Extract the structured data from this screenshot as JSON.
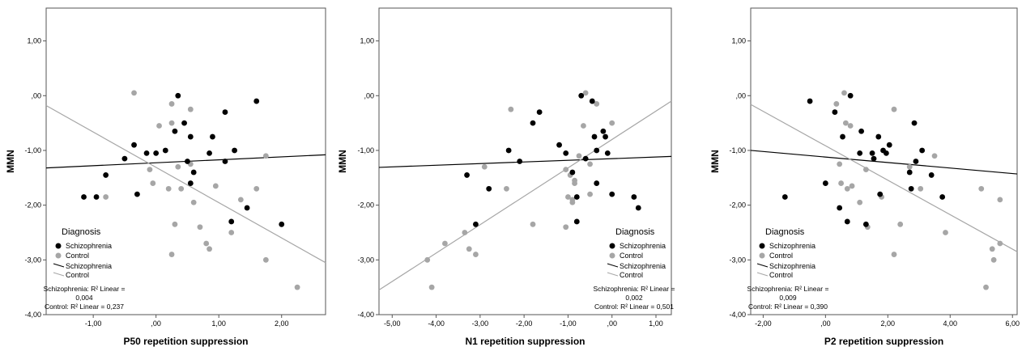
{
  "colors": {
    "schizophrenia": "#000000",
    "control": "#a6a6a6",
    "frame": "#555555"
  },
  "legend": {
    "title": "Diagnosis",
    "point_labels": [
      "Schizophrenia",
      "Control"
    ],
    "line_labels": [
      "Schizophrenia",
      "Control"
    ]
  },
  "chart_data": [
    {
      "type": "scatter",
      "xlabel": "P50 repetition suppression",
      "ylabel": "MMN",
      "xlim": [
        -1.75,
        2.7
      ],
      "ylim": [
        -4.0,
        1.6
      ],
      "xticks": [
        -1.0,
        0.0,
        1.0,
        2.0
      ],
      "xtick_labels": [
        "-1,00",
        ",00",
        "1,00",
        "2,00"
      ],
      "yticks": [
        -4.0,
        -3.0,
        -2.0,
        -1.0,
        0.0,
        1.0
      ],
      "ytick_labels": [
        "-4,00",
        "-3,00",
        "-2,00",
        "-1,00",
        ",00",
        "1,00"
      ],
      "series": [
        {
          "name": "Schizophrenia",
          "points": [
            [
              -1.15,
              -1.85
            ],
            [
              -0.95,
              -1.85
            ],
            [
              -0.8,
              -1.45
            ],
            [
              -0.5,
              -1.15
            ],
            [
              -0.35,
              -0.9
            ],
            [
              -0.3,
              -1.8
            ],
            [
              -0.15,
              -1.05
            ],
            [
              0.0,
              -1.05
            ],
            [
              0.15,
              -1.0
            ],
            [
              0.3,
              -0.65
            ],
            [
              0.35,
              0.0
            ],
            [
              0.45,
              -0.5
            ],
            [
              0.55,
              -0.75
            ],
            [
              0.5,
              -1.2
            ],
            [
              0.55,
              -1.6
            ],
            [
              0.6,
              -1.4
            ],
            [
              0.85,
              -1.05
            ],
            [
              0.9,
              -0.75
            ],
            [
              1.1,
              -0.3
            ],
            [
              1.1,
              -1.2
            ],
            [
              1.2,
              -2.3
            ],
            [
              1.25,
              -1.0
            ],
            [
              1.45,
              -2.05
            ],
            [
              1.6,
              -0.1
            ],
            [
              2.0,
              -2.35
            ]
          ]
        },
        {
          "name": "Control",
          "points": [
            [
              -0.8,
              -1.85
            ],
            [
              -0.35,
              0.05
            ],
            [
              -0.1,
              -1.35
            ],
            [
              -0.05,
              -1.6
            ],
            [
              0.05,
              -0.55
            ],
            [
              0.2,
              -1.7
            ],
            [
              0.25,
              -0.15
            ],
            [
              0.25,
              -0.5
            ],
            [
              0.25,
              -2.9
            ],
            [
              0.3,
              -2.35
            ],
            [
              0.35,
              -1.3
            ],
            [
              0.4,
              -1.7
            ],
            [
              0.55,
              -0.25
            ],
            [
              0.55,
              -1.25
            ],
            [
              0.6,
              -1.95
            ],
            [
              0.7,
              -2.4
            ],
            [
              0.8,
              -2.7
            ],
            [
              0.85,
              -2.8
            ],
            [
              0.95,
              -1.65
            ],
            [
              1.2,
              -2.5
            ],
            [
              1.35,
              -1.9
            ],
            [
              1.6,
              -1.7
            ],
            [
              1.75,
              -1.1
            ],
            [
              1.75,
              -3.0
            ],
            [
              2.25,
              -3.5
            ]
          ]
        }
      ],
      "fit_lines": [
        {
          "name": "Schizophrenia",
          "x": [
            -1.75,
            2.7
          ],
          "y": [
            -1.32,
            -1.08
          ]
        },
        {
          "name": "Control",
          "x": [
            -1.75,
            2.7
          ],
          "y": [
            -0.18,
            -3.05
          ]
        }
      ],
      "r2_text": {
        "schizophrenia_line1": "Schizophrenia: R² Linear =",
        "schizophrenia_line2": "0,004",
        "control": "Control: R² Linear = 0,237"
      }
    },
    {
      "type": "scatter",
      "xlabel": "N1 repetition suppression",
      "ylabel": "MMN",
      "xlim": [
        -5.3,
        1.35
      ],
      "ylim": [
        -4.0,
        1.6
      ],
      "xticks": [
        -5.0,
        -4.0,
        -3.0,
        -2.0,
        -1.0,
        0.0,
        1.0
      ],
      "xtick_labels": [
        "-5,00",
        "-4,00",
        "-3,00",
        "-2,00",
        "-1,00",
        ",00",
        "1,00"
      ],
      "yticks": [
        -4.0,
        -3.0,
        -2.0,
        -1.0,
        0.0,
        1.0
      ],
      "ytick_labels": [
        "-4,00",
        "-3,00",
        "-2,00",
        "-1,00",
        ",00",
        "1,00"
      ],
      "series": [
        {
          "name": "Schizophrenia",
          "points": [
            [
              -3.3,
              -1.45
            ],
            [
              -3.1,
              -2.35
            ],
            [
              -2.8,
              -1.7
            ],
            [
              -2.35,
              -1.0
            ],
            [
              -2.1,
              -1.2
            ],
            [
              -1.8,
              -0.5
            ],
            [
              -1.65,
              -0.3
            ],
            [
              -1.2,
              -0.9
            ],
            [
              -1.05,
              -1.05
            ],
            [
              -0.9,
              -1.4
            ],
            [
              -0.8,
              -1.85
            ],
            [
              -0.8,
              -2.3
            ],
            [
              -0.7,
              0.0
            ],
            [
              -0.6,
              -1.15
            ],
            [
              -0.45,
              -0.1
            ],
            [
              -0.4,
              -0.75
            ],
            [
              -0.35,
              -1.0
            ],
            [
              -0.35,
              -1.6
            ],
            [
              -0.2,
              -0.65
            ],
            [
              -0.15,
              -0.75
            ],
            [
              -0.1,
              -1.05
            ],
            [
              0.0,
              -1.8
            ],
            [
              0.5,
              -1.85
            ],
            [
              0.6,
              -2.05
            ]
          ]
        },
        {
          "name": "Control",
          "points": [
            [
              -4.2,
              -3.0
            ],
            [
              -4.1,
              -3.5
            ],
            [
              -3.8,
              -2.7
            ],
            [
              -3.35,
              -2.5
            ],
            [
              -3.25,
              -2.8
            ],
            [
              -3.1,
              -2.9
            ],
            [
              -2.9,
              -1.3
            ],
            [
              -2.4,
              -1.7
            ],
            [
              -2.3,
              -0.25
            ],
            [
              -1.8,
              -2.35
            ],
            [
              -1.05,
              -1.35
            ],
            [
              -1.0,
              -1.85
            ],
            [
              -0.95,
              -1.45
            ],
            [
              -0.9,
              -1.9
            ],
            [
              -0.9,
              -1.95
            ],
            [
              -0.85,
              -1.6
            ],
            [
              -0.85,
              -1.55
            ],
            [
              -0.75,
              -1.1
            ],
            [
              -0.65,
              -0.55
            ],
            [
              -0.6,
              0.05
            ],
            [
              -0.5,
              -1.25
            ],
            [
              -0.5,
              -1.8
            ],
            [
              -0.35,
              -0.15
            ],
            [
              -1.05,
              -2.4
            ],
            [
              0.0,
              -0.5
            ]
          ]
        }
      ],
      "fit_lines": [
        {
          "name": "Schizophrenia",
          "x": [
            -5.3,
            1.35
          ],
          "y": [
            -1.31,
            -1.11
          ]
        },
        {
          "name": "Control",
          "x": [
            -5.3,
            1.35
          ],
          "y": [
            -3.55,
            -0.1
          ]
        }
      ],
      "r2_text": {
        "schizophrenia_line1": "Schizophrenia: R² Linear =",
        "schizophrenia_line2": "0,002",
        "control": "Control: R² Linear = 0,501"
      }
    },
    {
      "type": "scatter",
      "xlabel": "P2 repetition suppression",
      "ylabel": "MMN",
      "xlim": [
        -2.4,
        6.15
      ],
      "ylim": [
        -4.0,
        1.6
      ],
      "xticks": [
        -2.0,
        0.0,
        2.0,
        4.0,
        6.0
      ],
      "xtick_labels": [
        "-2,00",
        ",00",
        "2,00",
        "4,00",
        "6,00"
      ],
      "yticks": [
        -4.0,
        -3.0,
        -2.0,
        -1.0,
        0.0,
        1.0
      ],
      "ytick_labels": [
        "-4,00",
        "-3,00",
        "-2,00",
        "-1,00",
        ",00",
        "1,00"
      ],
      "series": [
        {
          "name": "Schizophrenia",
          "points": [
            [
              -1.3,
              -1.85
            ],
            [
              -0.5,
              -0.1
            ],
            [
              0.0,
              -1.6
            ],
            [
              0.3,
              -0.3
            ],
            [
              0.45,
              -2.05
            ],
            [
              0.55,
              -0.75
            ],
            [
              0.7,
              -2.3
            ],
            [
              0.8,
              0.0
            ],
            [
              1.1,
              -1.05
            ],
            [
              1.15,
              -0.65
            ],
            [
              1.3,
              -2.35
            ],
            [
              1.5,
              -1.05
            ],
            [
              1.55,
              -1.15
            ],
            [
              1.7,
              -0.75
            ],
            [
              1.75,
              -1.8
            ],
            [
              1.85,
              -1.0
            ],
            [
              1.95,
              -1.05
            ],
            [
              2.05,
              -0.9
            ],
            [
              2.7,
              -1.4
            ],
            [
              2.75,
              -1.7
            ],
            [
              2.85,
              -0.5
            ],
            [
              2.9,
              -1.2
            ],
            [
              3.1,
              -1.0
            ],
            [
              3.4,
              -1.45
            ],
            [
              3.75,
              -1.85
            ]
          ]
        },
        {
          "name": "Control",
          "points": [
            [
              0.35,
              -0.15
            ],
            [
              0.45,
              -1.25
            ],
            [
              0.5,
              -1.6
            ],
            [
              0.6,
              0.05
            ],
            [
              0.65,
              -0.5
            ],
            [
              0.8,
              -0.55
            ],
            [
              0.85,
              -1.65
            ],
            [
              1.1,
              -1.95
            ],
            [
              1.3,
              -1.35
            ],
            [
              1.35,
              -2.4
            ],
            [
              1.8,
              -1.85
            ],
            [
              2.2,
              -0.25
            ],
            [
              2.2,
              -2.9
            ],
            [
              2.4,
              -2.35
            ],
            [
              2.7,
              -1.3
            ],
            [
              3.05,
              -1.7
            ],
            [
              3.5,
              -1.1
            ],
            [
              3.85,
              -2.5
            ],
            [
              5.0,
              -1.7
            ],
            [
              5.15,
              -3.5
            ],
            [
              5.35,
              -2.8
            ],
            [
              5.4,
              -3.0
            ],
            [
              5.6,
              -2.7
            ],
            [
              5.6,
              -1.9
            ],
            [
              0.7,
              -1.7
            ]
          ]
        }
      ],
      "fit_lines": [
        {
          "name": "Schizophrenia",
          "x": [
            -2.4,
            6.15
          ],
          "y": [
            -1.0,
            -1.43
          ]
        },
        {
          "name": "Control",
          "x": [
            -2.4,
            6.15
          ],
          "y": [
            -0.16,
            -2.85
          ]
        }
      ],
      "r2_text": {
        "schizophrenia_line1": "Schizophrenia: R² Linear =",
        "schizophrenia_line2": "0,009",
        "control": "Control: R² Linear = 0,390"
      }
    }
  ]
}
